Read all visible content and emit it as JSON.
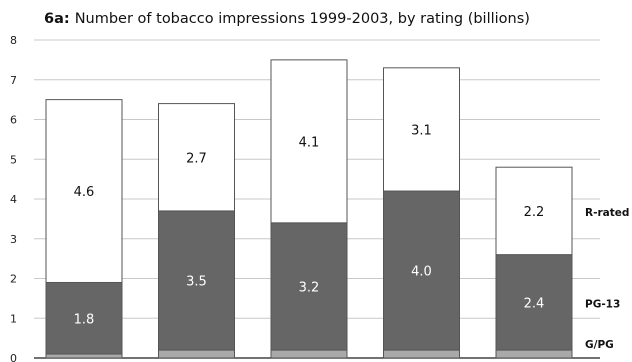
{
  "chart_data": {
    "type": "bar",
    "stacked": true,
    "title_prefix": "6a:",
    "title": "Number of tobacco impressions 1999-2003, by rating (billions)",
    "xlabel": "",
    "ylabel": "",
    "ylim": [
      0,
      8
    ],
    "yticks": [
      0,
      1,
      2,
      3,
      4,
      5,
      6,
      7,
      8
    ],
    "grid": true,
    "categories": [
      "",
      "",
      "",
      "",
      ""
    ],
    "series": [
      {
        "name": "G/PG",
        "values": [
          0.1,
          0.2,
          0.2,
          0.2,
          0.2
        ],
        "color": "#a9a9a9",
        "label_color": "#ffffff"
      },
      {
        "name": "PG-13",
        "values": [
          1.8,
          3.5,
          3.2,
          4.0,
          2.4
        ],
        "color": "#666666",
        "label_color": "#ffffff"
      },
      {
        "name": "R-rated",
        "values": [
          4.6,
          2.7,
          4.1,
          3.1,
          2.2
        ],
        "color": "#ffffff",
        "label_color": "#111111"
      }
    ],
    "legend": "right, beside last bar"
  }
}
